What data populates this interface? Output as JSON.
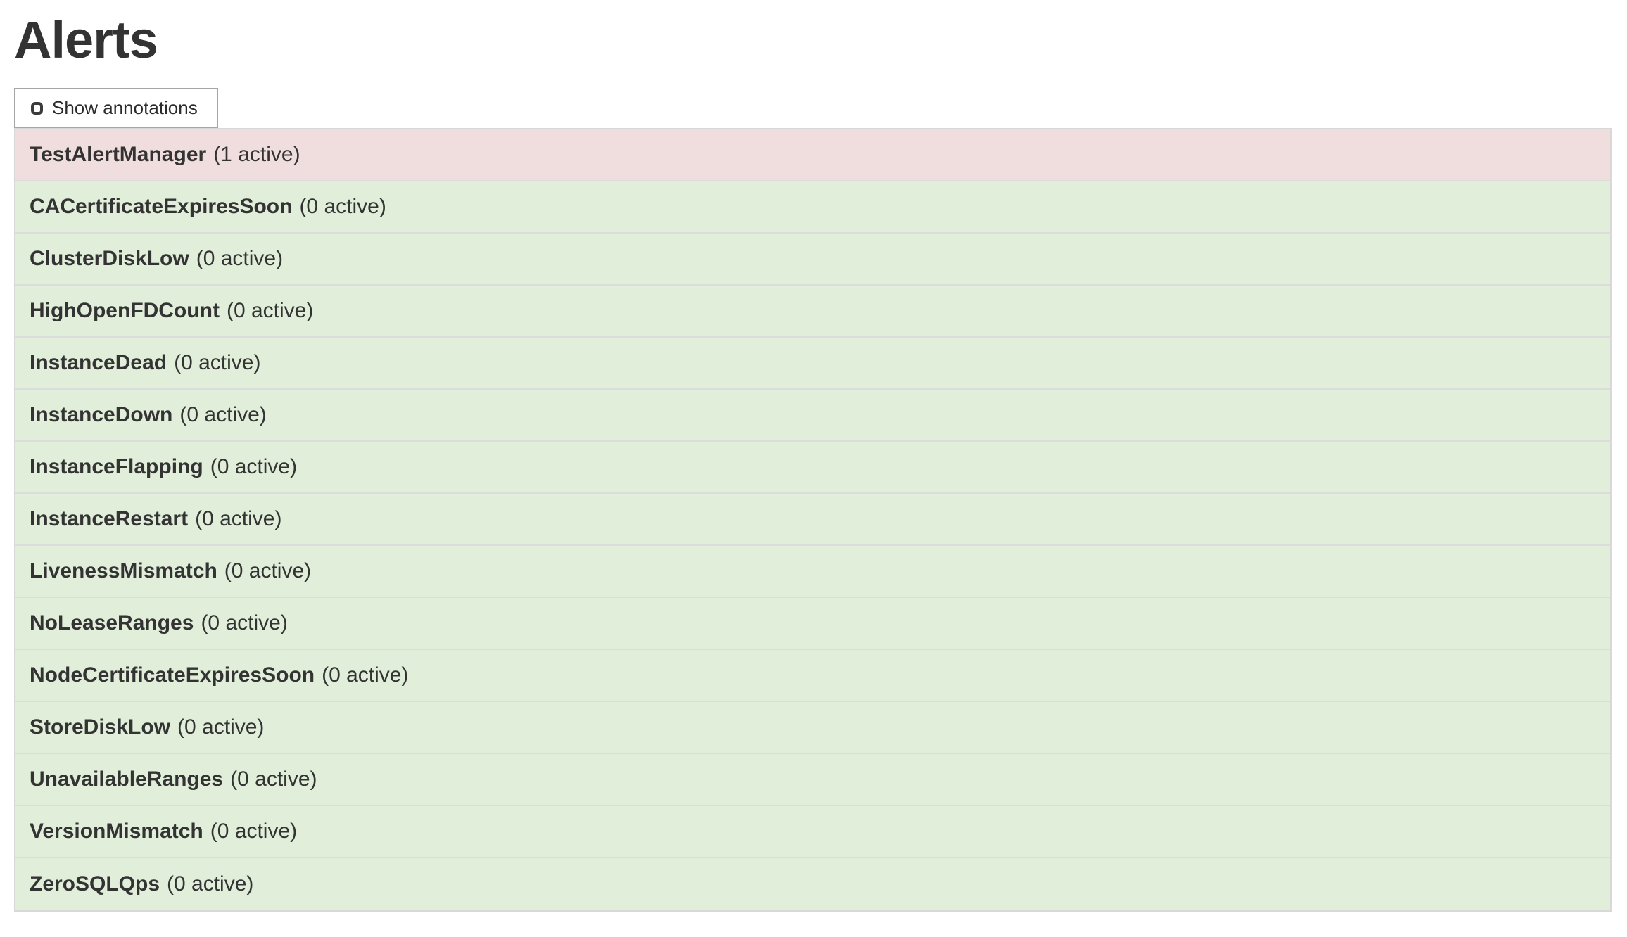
{
  "page": {
    "title": "Alerts"
  },
  "toolbar": {
    "show_annotations_label": "Show annotations",
    "checkbox_checked": false
  },
  "colors": {
    "firing_bg": "#f0dede",
    "inactive_bg": "#e1eeda",
    "table_border": "#d8d8d8",
    "row_separator": "#dcdcdc",
    "text": "#333333",
    "button_border": "#a6a6a6"
  },
  "alerts": [
    {
      "name": "TestAlertManager",
      "active_count": 1,
      "count_label": "(1 active)",
      "state": "firing"
    },
    {
      "name": "CACertificateExpiresSoon",
      "active_count": 0,
      "count_label": "(0 active)",
      "state": "inactive"
    },
    {
      "name": "ClusterDiskLow",
      "active_count": 0,
      "count_label": "(0 active)",
      "state": "inactive"
    },
    {
      "name": "HighOpenFDCount",
      "active_count": 0,
      "count_label": "(0 active)",
      "state": "inactive"
    },
    {
      "name": "InstanceDead",
      "active_count": 0,
      "count_label": "(0 active)",
      "state": "inactive"
    },
    {
      "name": "InstanceDown",
      "active_count": 0,
      "count_label": "(0 active)",
      "state": "inactive"
    },
    {
      "name": "InstanceFlapping",
      "active_count": 0,
      "count_label": "(0 active)",
      "state": "inactive"
    },
    {
      "name": "InstanceRestart",
      "active_count": 0,
      "count_label": "(0 active)",
      "state": "inactive"
    },
    {
      "name": "LivenessMismatch",
      "active_count": 0,
      "count_label": "(0 active)",
      "state": "inactive"
    },
    {
      "name": "NoLeaseRanges",
      "active_count": 0,
      "count_label": "(0 active)",
      "state": "inactive"
    },
    {
      "name": "NodeCertificateExpiresSoon",
      "active_count": 0,
      "count_label": "(0 active)",
      "state": "inactive"
    },
    {
      "name": "StoreDiskLow",
      "active_count": 0,
      "count_label": "(0 active)",
      "state": "inactive"
    },
    {
      "name": "UnavailableRanges",
      "active_count": 0,
      "count_label": "(0 active)",
      "state": "inactive"
    },
    {
      "name": "VersionMismatch",
      "active_count": 0,
      "count_label": "(0 active)",
      "state": "inactive"
    },
    {
      "name": "ZeroSQLQps",
      "active_count": 0,
      "count_label": "(0 active)",
      "state": "inactive"
    }
  ]
}
